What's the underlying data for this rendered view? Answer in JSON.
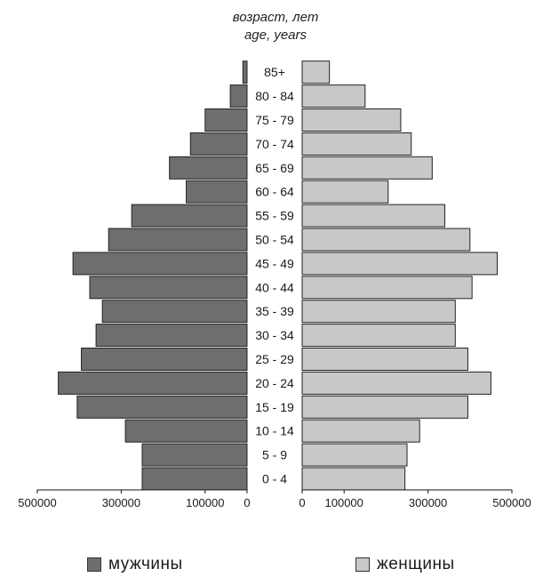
{
  "chart_data": {
    "type": "bar",
    "orientation": "horizontal-pyramid",
    "y_axis_title_ru": "возраст, лет",
    "y_axis_title_en": "age, years",
    "categories": [
      "0 - 4",
      "5 - 9",
      "10 - 14",
      "15 - 19",
      "20 - 24",
      "25 - 29",
      "30 - 34",
      "35 - 39",
      "40 - 44",
      "45 - 49",
      "50 - 54",
      "55 - 59",
      "60 - 64",
      "65 - 69",
      "70 - 74",
      "75 - 79",
      "80 - 84",
      "85+"
    ],
    "series": [
      {
        "name": "мужчины",
        "side": "left",
        "color": "#6e6e6e",
        "values": [
          250000,
          250000,
          290000,
          405000,
          450000,
          395000,
          360000,
          345000,
          375000,
          415000,
          330000,
          275000,
          145000,
          185000,
          135000,
          100000,
          40000,
          10000
        ]
      },
      {
        "name": "женщины",
        "side": "right",
        "color": "#c8c8c8",
        "values": [
          245000,
          250000,
          280000,
          395000,
          450000,
          395000,
          365000,
          365000,
          405000,
          465000,
          400000,
          340000,
          205000,
          310000,
          260000,
          235000,
          150000,
          65000
        ]
      }
    ],
    "x_ticks_left": [
      "500000",
      "300000",
      "100000",
      "0"
    ],
    "x_tick_values_left": [
      500000,
      300000,
      100000,
      0
    ],
    "x_ticks_right": [
      "0",
      "100000",
      "300000",
      "500000"
    ],
    "x_tick_values_right": [
      0,
      100000,
      300000,
      500000
    ],
    "xlim": [
      0,
      500000
    ],
    "legend_position": "bottom",
    "grid": false
  },
  "legend": {
    "male_label": "мужчины",
    "female_label": "женщины"
  }
}
